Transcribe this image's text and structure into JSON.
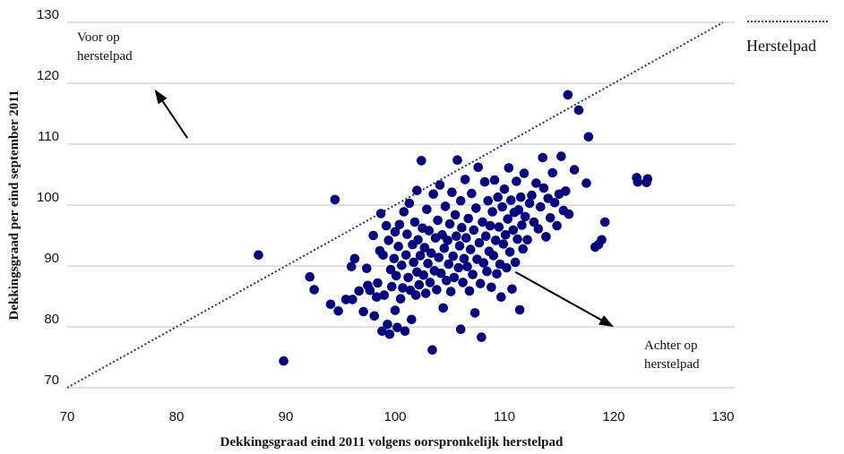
{
  "chart_data": {
    "type": "scatter",
    "xlabel": "Dekkingsgraad eind 2011 volgens oorspronkelijk herstelpad",
    "ylabel": "Dekkingsgraad per eind september 2011",
    "xlim": [
      70,
      130
    ],
    "ylim": [
      70,
      130
    ],
    "x_ticks": [
      "70",
      "80",
      "90",
      "100",
      "110",
      "120",
      "130"
    ],
    "y_ticks": [
      "70",
      "80",
      "90",
      "100",
      "110",
      "120",
      "130"
    ],
    "grid": "horizontal",
    "legend": {
      "label": "Herstelpad",
      "placement": "top-right",
      "style": "dotted line"
    },
    "reference_line": {
      "name": "Herstelpad",
      "from": [
        70,
        70
      ],
      "to": [
        130,
        130
      ]
    },
    "annotations": [
      {
        "text_lines": [
          "Voor op",
          "herstelpad"
        ],
        "arrow_from": [
          81,
          111
        ],
        "arrow_to": [
          78,
          119
        ]
      },
      {
        "text_lines": [
          "Achter op",
          "herstelpad"
        ],
        "arrow_from": [
          111,
          89
        ],
        "arrow_to": [
          120,
          80
        ]
      }
    ],
    "colors": {
      "points": "#000080",
      "reference": "#1F2F6F",
      "grid": "#BFBFBF"
    },
    "series": [
      {
        "points": [
          [
            87.5,
            91.8
          ],
          [
            89.8,
            74.4
          ],
          [
            92.2,
            88.2
          ],
          [
            92.6,
            86.1
          ],
          [
            94.1,
            83.7
          ],
          [
            94.5,
            100.9
          ],
          [
            94.8,
            82.6
          ],
          [
            95.5,
            84.5
          ],
          [
            96,
            89.9
          ],
          [
            96.1,
            84.5
          ],
          [
            96.3,
            91.2
          ],
          [
            96.7,
            85.9
          ],
          [
            97.1,
            82.5
          ],
          [
            97.4,
            89.6
          ],
          [
            97.5,
            86.8
          ],
          [
            97.7,
            86
          ],
          [
            98,
            95
          ],
          [
            98.1,
            81.8
          ],
          [
            98.3,
            84.9
          ],
          [
            98.4,
            87.2
          ],
          [
            98.6,
            92.5
          ],
          [
            98.7,
            98.6
          ],
          [
            98.8,
            79.3
          ],
          [
            98.9,
            91.8
          ],
          [
            99,
            85.2
          ],
          [
            99.2,
            96.6
          ],
          [
            99.3,
            80.4
          ],
          [
            99.4,
            94.2
          ],
          [
            99.5,
            78.8
          ],
          [
            99.6,
            89.4
          ],
          [
            99.7,
            86.6
          ],
          [
            99.9,
            91.2
          ],
          [
            100,
            95.6
          ],
          [
            100,
            82.7
          ],
          [
            100.1,
            88.4
          ],
          [
            100.2,
            79.9
          ],
          [
            100.3,
            93.2
          ],
          [
            100.4,
            96.8
          ],
          [
            100.5,
            84.6
          ],
          [
            100.6,
            90.1
          ],
          [
            100.7,
            86.4
          ],
          [
            100.8,
            98.9
          ],
          [
            100.9,
            79.3
          ],
          [
            101,
            91.8
          ],
          [
            101.1,
            95.2
          ],
          [
            101.2,
            88.1
          ],
          [
            101.3,
            100.3
          ],
          [
            101.4,
            86
          ],
          [
            101.5,
            81.2
          ],
          [
            101.6,
            93.5
          ],
          [
            101.7,
            90.6
          ],
          [
            101.8,
            97.2
          ],
          [
            101.9,
            85.2
          ],
          [
            102,
            89
          ],
          [
            102,
            102.4
          ],
          [
            102.1,
            94.3
          ],
          [
            102.2,
            86.9
          ],
          [
            102.3,
            91.7
          ],
          [
            102.4,
            107.3
          ],
          [
            102.5,
            96.2
          ],
          [
            102.6,
            88.5
          ],
          [
            102.7,
            93
          ],
          [
            102.8,
            85.5
          ],
          [
            102.9,
            99.3
          ],
          [
            103,
            90.4
          ],
          [
            103.1,
            95.8
          ],
          [
            103.2,
            87.3
          ],
          [
            103.3,
            92.1
          ],
          [
            103.4,
            76.2
          ],
          [
            103.5,
            101.8
          ],
          [
            103.6,
            89.2
          ],
          [
            103.7,
            94.6
          ],
          [
            103.8,
            86.1
          ],
          [
            103.9,
            97.5
          ],
          [
            104,
            91.4
          ],
          [
            104.1,
            103.3
          ],
          [
            104.2,
            88.8
          ],
          [
            104.3,
            95.1
          ],
          [
            104.4,
            83.1
          ],
          [
            104.5,
            92.9
          ],
          [
            104.6,
            99.8
          ],
          [
            104.7,
            87.6
          ],
          [
            104.8,
            94.2
          ],
          [
            104.9,
            90.3
          ],
          [
            105,
            96.9
          ],
          [
            105.1,
            85.8
          ],
          [
            105.2,
            102.1
          ],
          [
            105.3,
            91.6
          ],
          [
            105.4,
            88.1
          ],
          [
            105.5,
            98.4
          ],
          [
            105.6,
            94.9
          ],
          [
            105.7,
            107.4
          ],
          [
            105.8,
            89.7
          ],
          [
            105.9,
            93.3
          ],
          [
            106,
            79.6
          ],
          [
            106,
            100.7
          ],
          [
            106.1,
            96.3
          ],
          [
            106.2,
            87.3
          ],
          [
            106.3,
            91.2
          ],
          [
            106.4,
            104.2
          ],
          [
            106.5,
            94.6
          ],
          [
            106.6,
            89.9
          ],
          [
            106.7,
            97.8
          ],
          [
            106.8,
            85.9
          ],
          [
            106.9,
            92.7
          ],
          [
            107,
            101.9
          ],
          [
            107.1,
            88.6
          ],
          [
            107.2,
            95.9
          ],
          [
            107.3,
            82.3
          ],
          [
            107.4,
            99.5
          ],
          [
            107.5,
            91.1
          ],
          [
            107.6,
            106.2
          ],
          [
            107.7,
            93.8
          ],
          [
            107.8,
            87.1
          ],
          [
            107.9,
            78.3
          ],
          [
            108,
            97.2
          ],
          [
            108.1,
            90.5
          ],
          [
            108.2,
            103.8
          ],
          [
            108.3,
            94.9
          ],
          [
            108.4,
            89.1
          ],
          [
            108.5,
            100.7
          ],
          [
            108.6,
            92.4
          ],
          [
            108.7,
            96.6
          ],
          [
            108.8,
            86.5
          ],
          [
            108.9,
            98.9
          ],
          [
            109,
            91.7
          ],
          [
            109.1,
            104.1
          ],
          [
            109.2,
            94.2
          ],
          [
            109.3,
            88.7
          ],
          [
            109.4,
            101.3
          ],
          [
            109.5,
            96.4
          ],
          [
            109.6,
            90.3
          ],
          [
            109.7,
            84.9
          ],
          [
            109.8,
            99.7
          ],
          [
            109.9,
            93.6
          ],
          [
            110,
            102.6
          ],
          [
            110.1,
            95.1
          ],
          [
            110.2,
            89.7
          ],
          [
            110.3,
            97.7
          ],
          [
            110.4,
            106.1
          ],
          [
            110.5,
            92.3
          ],
          [
            110.6,
            100.8
          ],
          [
            110.7,
            86.2
          ],
          [
            110.8,
            95.9
          ],
          [
            110.9,
            98.8
          ],
          [
            111,
            90.6
          ],
          [
            111.1,
            103.9
          ],
          [
            111.2,
            94.4
          ],
          [
            111.3,
            99.2
          ],
          [
            111.4,
            82.8
          ],
          [
            111.5,
            101.3
          ],
          [
            111.6,
            96.7
          ],
          [
            111.7,
            92.8
          ],
          [
            111.8,
            105.2
          ],
          [
            111.9,
            98.1
          ],
          [
            112.1,
            94.3
          ],
          [
            112.3,
            100.3
          ],
          [
            112.5,
            101.6
          ],
          [
            112.7,
            97.2
          ],
          [
            112.9,
            103.6
          ],
          [
            113.1,
            96.1
          ],
          [
            113.3,
            99.7
          ],
          [
            113.5,
            107.8
          ],
          [
            113.6,
            102.8
          ],
          [
            113.8,
            94.8
          ],
          [
            114,
            101.1
          ],
          [
            114.2,
            97.9
          ],
          [
            114.4,
            105.3
          ],
          [
            114.6,
            100.4
          ],
          [
            114.8,
            96.6
          ],
          [
            115,
            101.8
          ],
          [
            115.2,
            108
          ],
          [
            115.4,
            99.1
          ],
          [
            115.6,
            102.3
          ],
          [
            115.8,
            118.1
          ],
          [
            115.9,
            98.5
          ],
          [
            116.4,
            105.8
          ],
          [
            116.8,
            115.6
          ],
          [
            117.5,
            103.6
          ],
          [
            117.7,
            111.2
          ],
          [
            118.3,
            93.1
          ],
          [
            118.6,
            93.5
          ],
          [
            118.9,
            94.3
          ],
          [
            119.2,
            97.2
          ],
          [
            122.1,
            104.5
          ],
          [
            122.2,
            103.8
          ],
          [
            123,
            103.7
          ],
          [
            123.1,
            104.3
          ]
        ]
      }
    ]
  }
}
